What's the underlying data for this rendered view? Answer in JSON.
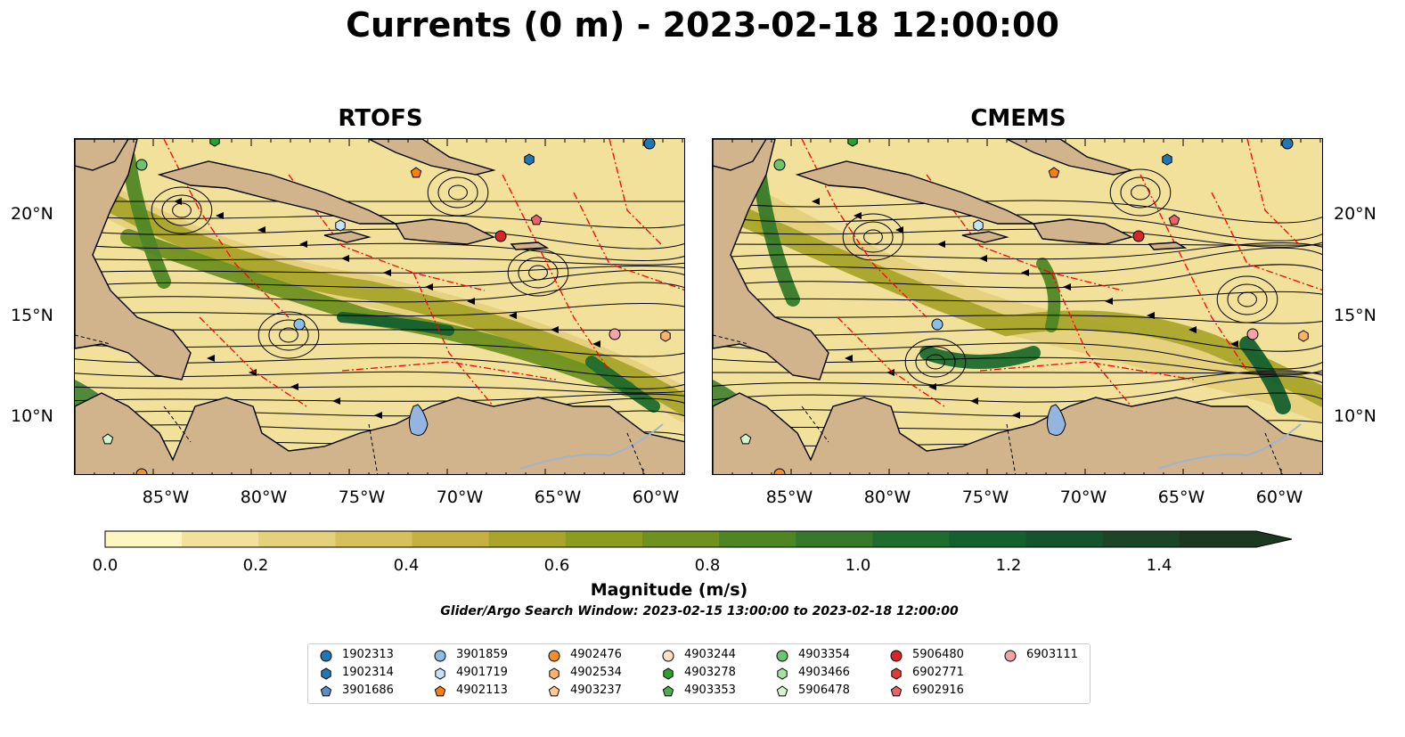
{
  "title": "Currents (0 m) - 2023-02-18 12:00:00",
  "panels": [
    {
      "title": "RTOFS"
    },
    {
      "title": "CMEMS"
    }
  ],
  "lat_ticks": [
    "20°N",
    "15°N",
    "10°N"
  ],
  "lon_ticks": [
    "85°W",
    "80°W",
    "75°W",
    "70°W",
    "65°W",
    "60°W"
  ],
  "colorbar": {
    "label": "Magnitude (m/s)",
    "ticks": [
      "0.0",
      "0.2",
      "0.4",
      "0.6",
      "0.8",
      "1.0",
      "1.2",
      "1.4"
    ],
    "levels": [
      0.0,
      0.1,
      0.2,
      0.3,
      0.4,
      0.5,
      0.6,
      0.7,
      0.8,
      0.9,
      1.0,
      1.1,
      1.2,
      1.3,
      1.4,
      1.5
    ],
    "colors": [
      "#fdf6c0",
      "#f1e19a",
      "#e5d07c",
      "#d6bf5c",
      "#c6b040",
      "#a9a52b",
      "#8c9c1e",
      "#6e9120",
      "#4f8624",
      "#35792a",
      "#1f6c2e",
      "#14602f",
      "#14532c",
      "#1a4527",
      "#1b3820"
    ]
  },
  "search_window": "Glider/Argo Search Window: 2023-02-15 13:00:00 to 2023-02-18 12:00:00",
  "legend": [
    {
      "id": "1902313",
      "marker": "circle",
      "color": "#1f77b4"
    },
    {
      "id": "1902314",
      "marker": "hexagon",
      "color": "#1f77b4"
    },
    {
      "id": "3901686",
      "marker": "pentagon",
      "color": "#5b8ec9"
    },
    {
      "id": "3901859",
      "marker": "circle",
      "color": "#8bbde8"
    },
    {
      "id": "4901719",
      "marker": "hexagon",
      "color": "#c6e2f7"
    },
    {
      "id": "4902113",
      "marker": "pentagon",
      "color": "#ff7f0e"
    },
    {
      "id": "4902476",
      "marker": "circle",
      "color": "#f28e2b"
    },
    {
      "id": "4902534",
      "marker": "hexagon",
      "color": "#ffb26b"
    },
    {
      "id": "4903237",
      "marker": "pentagon",
      "color": "#ffc98f"
    },
    {
      "id": "4903244",
      "marker": "circle",
      "color": "#fde0c5"
    },
    {
      "id": "4903278",
      "marker": "hexagon",
      "color": "#2ca02c"
    },
    {
      "id": "4903353",
      "marker": "pentagon",
      "color": "#4bb04b"
    },
    {
      "id": "4903354",
      "marker": "circle",
      "color": "#6cc46c"
    },
    {
      "id": "4903466",
      "marker": "hexagon",
      "color": "#a6e0a0"
    },
    {
      "id": "5906478",
      "marker": "pentagon",
      "color": "#d2f5cc"
    },
    {
      "id": "5906480",
      "marker": "circle",
      "color": "#d62728"
    },
    {
      "id": "6902771",
      "marker": "hexagon",
      "color": "#e03b3b"
    },
    {
      "id": "6902916",
      "marker": "pentagon",
      "color": "#e8636b"
    },
    {
      "id": "6903111",
      "marker": "circle",
      "color": "#f4a3a8"
    }
  ],
  "colors": {
    "land": "#d2b48c",
    "lake": "#93b5e0",
    "eez": "#ff0000",
    "river": "#9fb4cf"
  }
}
